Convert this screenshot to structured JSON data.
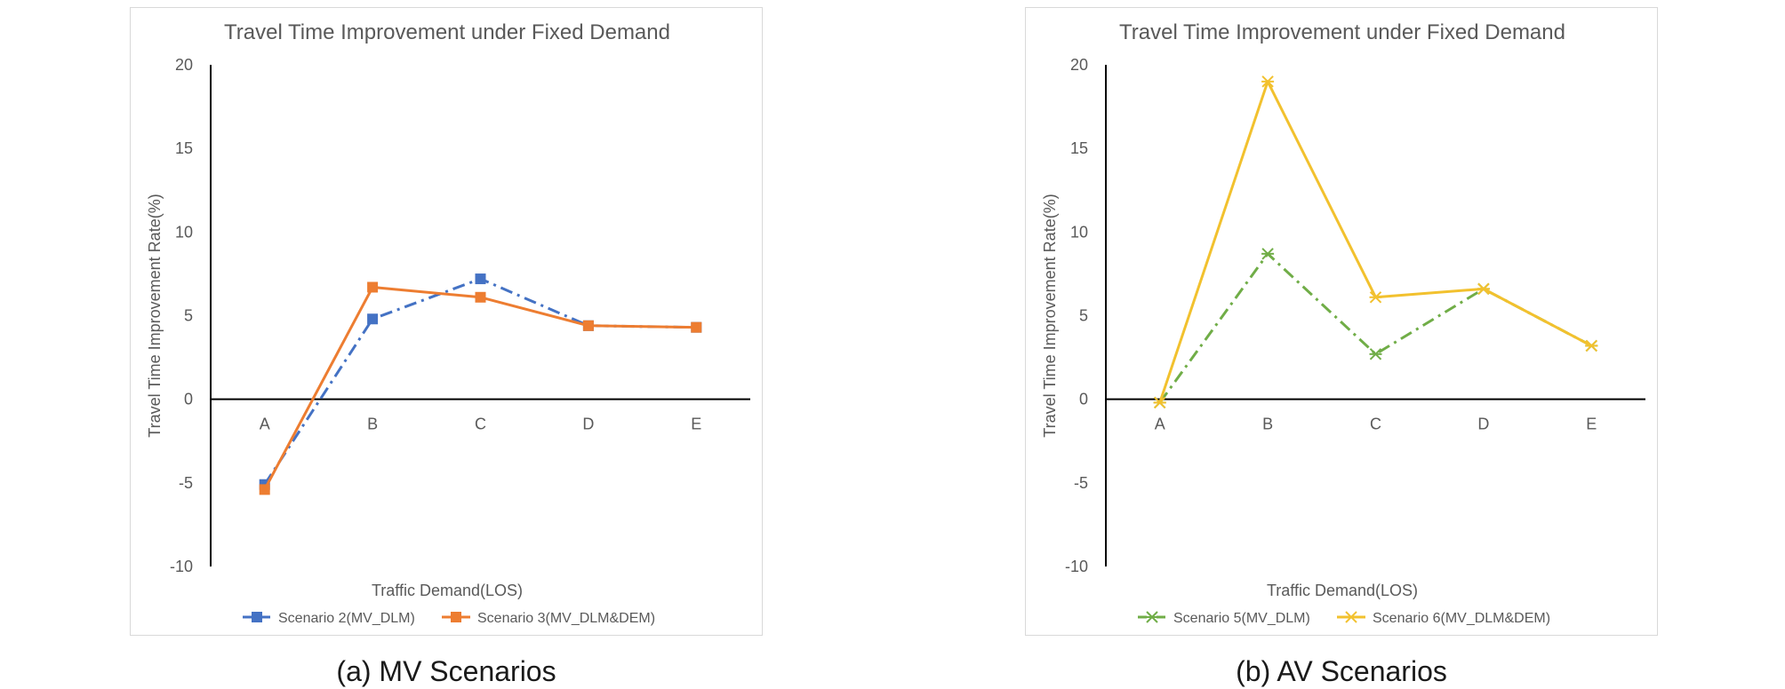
{
  "chart_data": [
    {
      "type": "line",
      "title": "Travel Time Improvement under Fixed Demand",
      "caption": "(a) MV Scenarios",
      "xlabel": "Traffic Demand(LOS)",
      "ylabel": "Travel Time Improvement Rate(%)",
      "categories": [
        "A",
        "B",
        "C",
        "D",
        "E"
      ],
      "ylim": [
        -10,
        20
      ],
      "yticks": [
        -10,
        -5,
        0,
        5,
        10,
        15,
        20
      ],
      "legend_position": "bottom",
      "series": [
        {
          "name": "Scenario 2(MV_DLM)",
          "values": [
            -5.1,
            4.8,
            7.2,
            4.4,
            4.3
          ],
          "color": "#4472c4",
          "dash": "dash-dot",
          "marker": "square"
        },
        {
          "name": "Scenario 3(MV_DLM&DEM)",
          "values": [
            -5.4,
            6.7,
            6.1,
            4.4,
            4.3
          ],
          "color": "#ed7d31",
          "dash": "solid",
          "marker": "square"
        }
      ]
    },
    {
      "type": "line",
      "title": "Travel Time Improvement under Fixed Demand",
      "caption": "(b) AV Scenarios",
      "xlabel": "Traffic Demand(LOS)",
      "ylabel": "Travel Time Improvement Rate(%)",
      "categories": [
        "A",
        "B",
        "C",
        "D",
        "E"
      ],
      "ylim": [
        -10,
        20
      ],
      "yticks": [
        -10,
        -5,
        0,
        5,
        10,
        15,
        20
      ],
      "legend_position": "bottom",
      "series": [
        {
          "name": "Scenario 5(MV_DLM)",
          "values": [
            -0.2,
            8.7,
            2.7,
            6.6,
            3.2
          ],
          "color": "#70ad47",
          "dash": "dash-dot",
          "marker": "star"
        },
        {
          "name": "Scenario 6(MV_DLM&DEM)",
          "values": [
            -0.2,
            19.0,
            6.1,
            6.6,
            3.2
          ],
          "color": "#f2c12e",
          "dash": "solid",
          "marker": "star"
        }
      ]
    }
  ]
}
